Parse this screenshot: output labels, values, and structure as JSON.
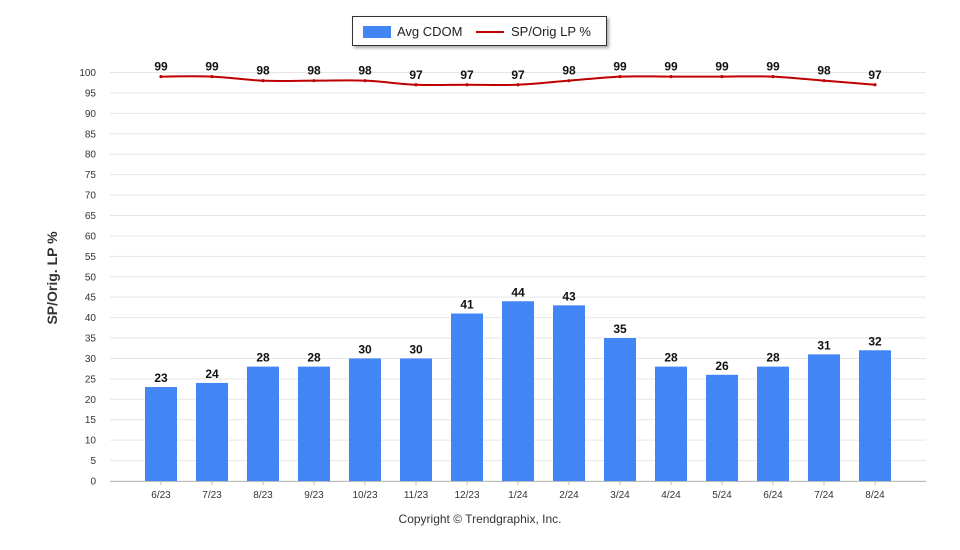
{
  "legend": {
    "bar_label": "Avg CDOM",
    "line_label": "SP/Orig LP %"
  },
  "ylabel": "SP/Orig. LP %",
  "copyright": "Copyright © Trendgraphix, Inc.",
  "colors": {
    "bar": "#4285f4",
    "line": "#c00000"
  },
  "chart_data": {
    "type": "bar",
    "categories": [
      "6/23",
      "7/23",
      "8/23",
      "9/23",
      "10/23",
      "11/23",
      "12/23",
      "1/24",
      "2/24",
      "3/24",
      "4/24",
      "5/24",
      "6/24",
      "7/24",
      "8/24"
    ],
    "series": [
      {
        "name": "Avg CDOM",
        "type": "bar",
        "values": [
          23,
          24,
          28,
          28,
          30,
          30,
          41,
          44,
          43,
          35,
          28,
          26,
          28,
          31,
          32
        ]
      },
      {
        "name": "SP/Orig LP %",
        "type": "line",
        "values": [
          99,
          99,
          98,
          98,
          98,
          97,
          97,
          97,
          98,
          99,
          99,
          99,
          99,
          98,
          97
        ]
      }
    ],
    "ylabel": "SP/Orig. LP %",
    "ylim": [
      0,
      100
    ],
    "yticks": [
      0,
      5,
      10,
      15,
      20,
      25,
      30,
      35,
      40,
      45,
      50,
      55,
      60,
      65,
      70,
      75,
      80,
      85,
      90,
      95,
      100
    ],
    "grid": true,
    "legend": "top-center"
  }
}
